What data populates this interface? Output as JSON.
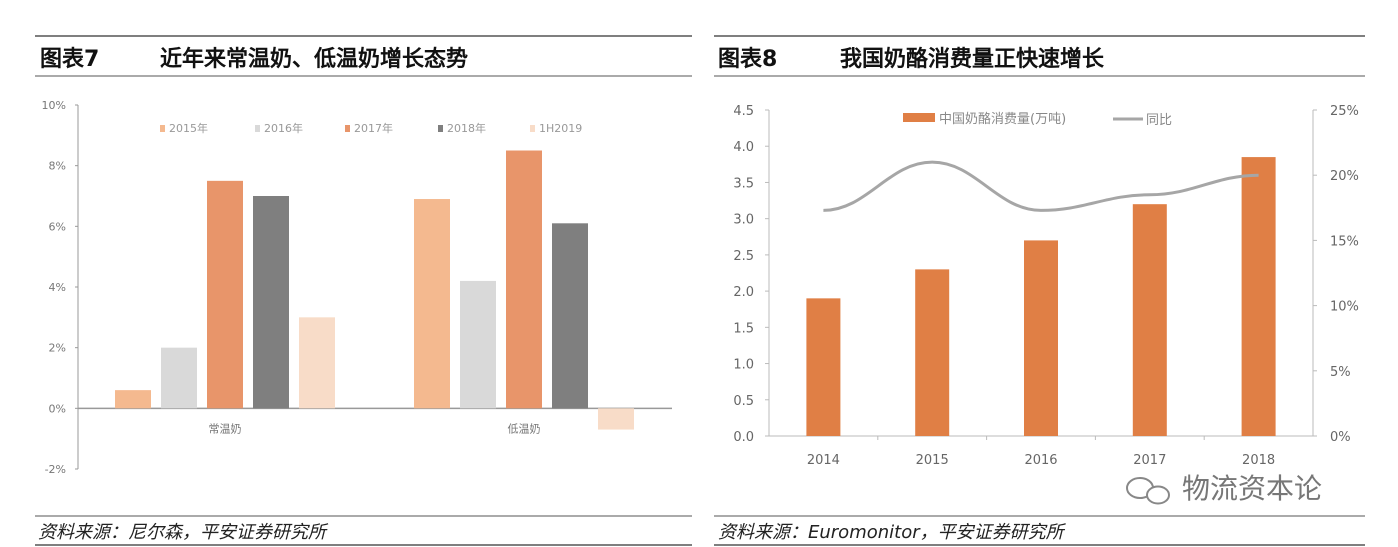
{
  "chart_data": [
    {
      "type": "bar",
      "figure_label": "图表7",
      "title": "近年来常温奶、低温奶增长态势",
      "categories": [
        "常温奶",
        "低温奶"
      ],
      "series": [
        {
          "name": "2015年",
          "values": [
            0.6,
            6.9
          ],
          "color": "#f4b98f"
        },
        {
          "name": "2016年",
          "values": [
            2.0,
            4.2
          ],
          "color": "#d9d9d9"
        },
        {
          "name": "2017年",
          "values": [
            7.5,
            8.5
          ],
          "color": "#e8956a"
        },
        {
          "name": "2018年",
          "values": [
            7.0,
            6.1
          ],
          "color": "#7f7f7f"
        },
        {
          "name": "1H2019",
          "values": [
            3.0,
            -0.7
          ],
          "color": "#f8dcc8"
        }
      ],
      "yticks": [
        "-2%",
        "0%",
        "2%",
        "4%",
        "6%",
        "8%",
        "10%"
      ],
      "ylim": [
        -2,
        10
      ],
      "legend": "top",
      "source": "资料来源：尼尔森，平安证券研究所"
    },
    {
      "type": "bar",
      "figure_label": "图表8",
      "title": "我国奶酪消费量正快速增长",
      "categories": [
        "2014",
        "2015",
        "2016",
        "2017",
        "2018"
      ],
      "series": [
        {
          "name": "中国奶酪消费量(万吨)",
          "type": "bar",
          "axis": "left",
          "values": [
            1.9,
            2.3,
            2.7,
            3.2,
            3.85
          ],
          "color": "#e07f45"
        },
        {
          "name": "同比",
          "type": "line",
          "axis": "right",
          "values": [
            17.3,
            21.0,
            17.3,
            18.5,
            20.0
          ],
          "color": "#a6a6a6"
        }
      ],
      "yticks_left": [
        "0.0",
        "0.5",
        "1.0",
        "1.5",
        "2.0",
        "2.5",
        "3.0",
        "3.5",
        "4.0",
        "4.5"
      ],
      "ylim_left": [
        0,
        4.5
      ],
      "yticks_right": [
        "0%",
        "5%",
        "10%",
        "15%",
        "20%",
        "25%"
      ],
      "ylim_right": [
        0,
        25
      ],
      "legend": "top",
      "source": "资料来源：Euromonitor，平安证券研究所"
    }
  ],
  "watermark": "物流资本论"
}
